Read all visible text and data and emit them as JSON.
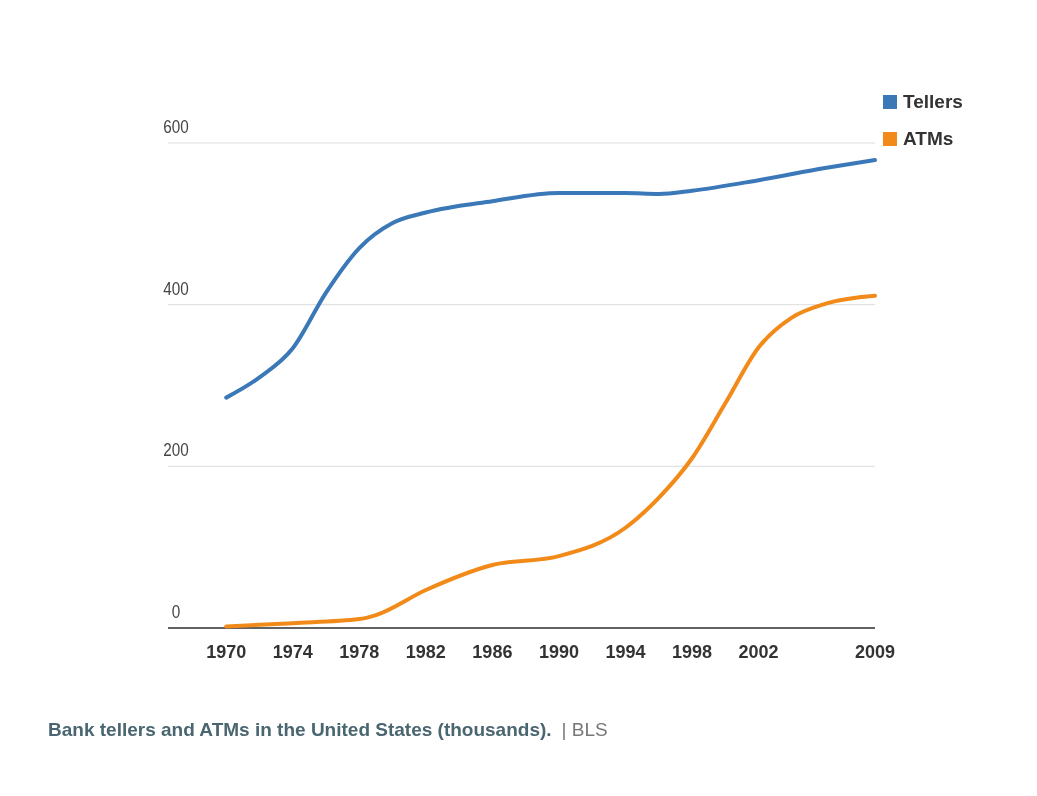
{
  "chart_data": {
    "type": "line",
    "title": "Bank tellers and ATMs in the United States (thousands).",
    "annotations": [
      "| BLS"
    ],
    "xlim": [
      1966.5,
      2009
    ],
    "xticks": [
      1970,
      1974,
      1978,
      1982,
      1986,
      1990,
      1994,
      1998,
      2002,
      2009
    ],
    "ylim": [
      0,
      600
    ],
    "yticks": [
      0,
      200,
      400,
      600
    ],
    "grid": "y",
    "legend": "top right",
    "marker": "none",
    "line_style": "solid",
    "series": [
      {
        "name": "Tellers",
        "color": "#3a78b8",
        "x": [
          1970,
          1972,
          1974,
          1976,
          1978,
          1980,
          1982,
          1986,
          1990,
          1994,
          1996,
          1998,
          2002,
          2006,
          2009
        ],
        "values": [
          285,
          310,
          346,
          415,
          470,
          501,
          514,
          528,
          538,
          538,
          537,
          541,
          554,
          569,
          579
        ]
      },
      {
        "name": "ATMs",
        "color": "#f28a1a",
        "x": [
          1970,
          1974,
          1978,
          1979,
          1982,
          1986,
          1990,
          1994,
          1996,
          1998,
          2000,
          2002,
          2004,
          2006,
          2009
        ],
        "values": [
          2,
          6,
          11,
          16,
          47,
          78,
          89,
          124,
          161,
          210,
          278,
          347,
          384,
          401,
          411
        ]
      }
    ]
  }
}
